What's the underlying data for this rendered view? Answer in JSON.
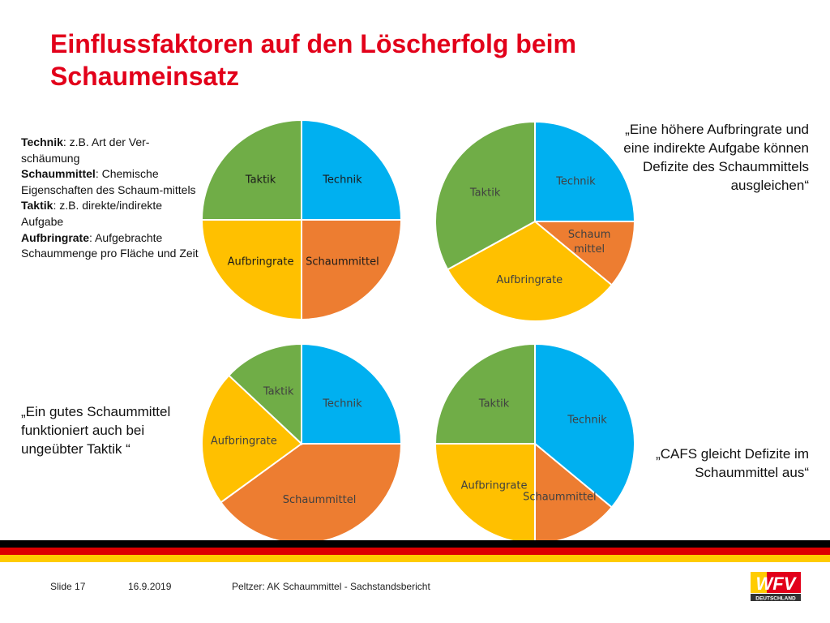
{
  "title": "Einflussfaktoren auf den Löscherfolg beim Schaumeinsatz",
  "legend": {
    "technik_term": "Technik",
    "technik_desc": ": z.B. Art der Ver-schäumung",
    "schaummittel_term": "Schaummittel",
    "schaummittel_desc": ": Chemische Eigenschaften des Schaum-mittels",
    "taktik_term": "Taktik",
    "taktik_desc": ": z.B. direkte/indirekte Aufgabe",
    "aufbringrate_term": "Aufbringrate",
    "aufbringrate_desc": ": Aufgebrachte Schaummenge pro Fläche und Zeit"
  },
  "quotes": {
    "top_right": "„Eine höhere Aufbringrate und eine indirekte Aufgabe können Defizite des Schaummittels ausgleichen“",
    "bottom_left": "„Ein gutes Schaummittel funktioniert auch bei ungeübter Taktik “",
    "bottom_right": "„CAFS gleicht Defizite im Schaummittel aus“"
  },
  "colors": {
    "title": "#e2001a",
    "Technik": "#00b0f0",
    "Schaummittel": "#ed7d31",
    "Aufbringrate": "#ffc000",
    "Taktik": "#70ad47"
  },
  "chart_data": [
    {
      "type": "pie",
      "slices": [
        {
          "label": "Technik",
          "value": 25
        },
        {
          "label": "Schaummittel",
          "value": 25
        },
        {
          "label": "Aufbringrate",
          "value": 25
        },
        {
          "label": "Taktik",
          "value": 25
        }
      ]
    },
    {
      "type": "pie",
      "slices": [
        {
          "label": "Technik",
          "value": 25
        },
        {
          "label": "Schaum mittel",
          "value": 11
        },
        {
          "label": "Aufbringrate",
          "value": 31
        },
        {
          "label": "Taktik",
          "value": 33
        }
      ]
    },
    {
      "type": "pie",
      "slices": [
        {
          "label": "Technik",
          "value": 25
        },
        {
          "label": "Schaummittel",
          "value": 40
        },
        {
          "label": "Aufbringrate",
          "value": 22
        },
        {
          "label": "Taktik",
          "value": 13
        }
      ]
    },
    {
      "type": "pie",
      "slices": [
        {
          "label": "Technik",
          "value": 36
        },
        {
          "label": "Schaummittel",
          "value": 14
        },
        {
          "label": "Aufbringrate",
          "value": 25
        },
        {
          "label": "Taktik",
          "value": 25
        }
      ]
    }
  ],
  "footer": {
    "slide": "Slide 17",
    "date": "16.9.2019",
    "presenter": "Peltzer: AK Schaummittel - Sachstandsbericht",
    "logo_text": "WFV",
    "logo_subtext": "DEUTSCHLAND"
  },
  "flag_colors": [
    "#000000",
    "#dd0000",
    "#ffcc00"
  ]
}
